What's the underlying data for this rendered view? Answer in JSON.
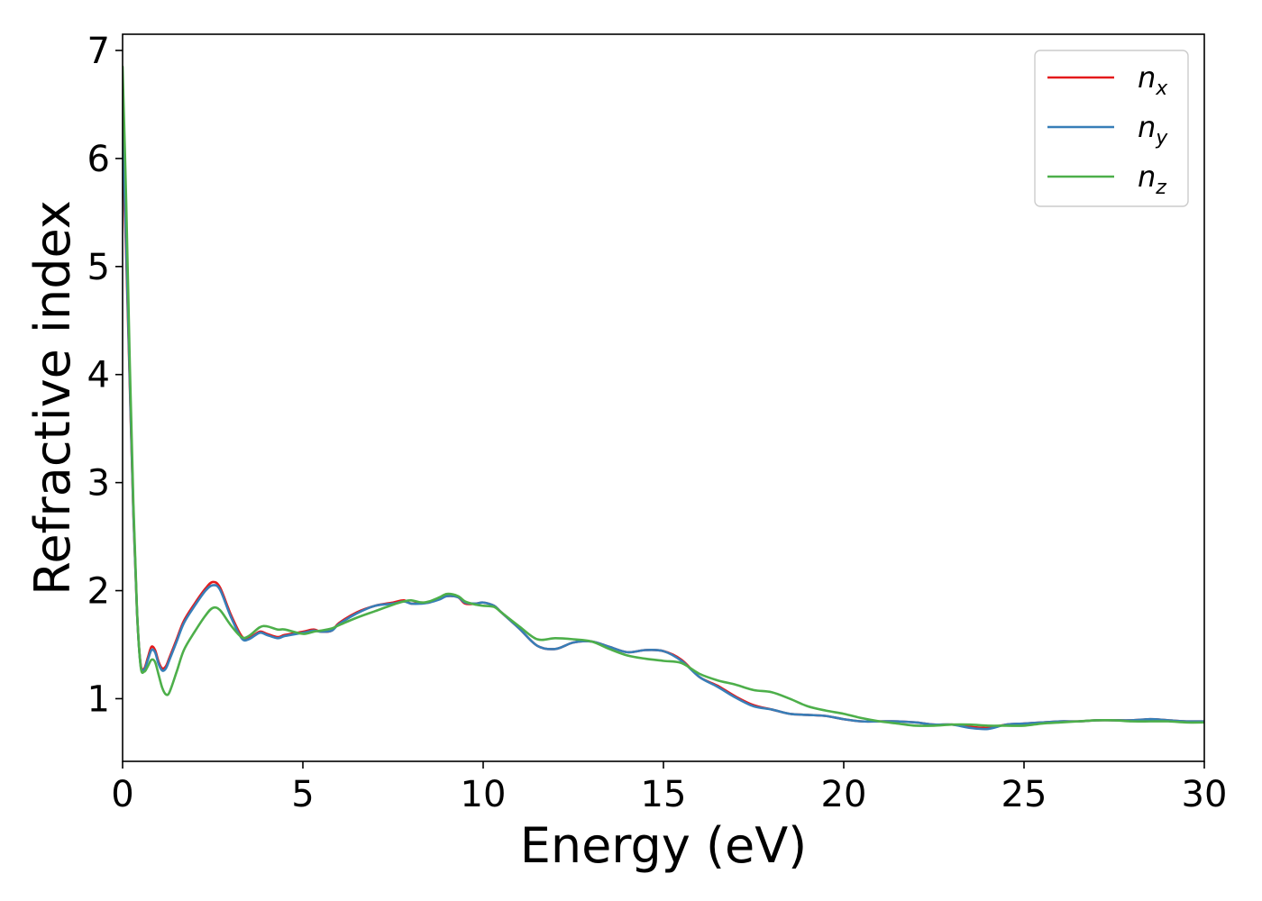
{
  "chart_data": {
    "type": "line",
    "xlabel": "Energy (eV)",
    "ylabel": "Refractive index",
    "xlim": [
      0,
      30
    ],
    "ylim": [
      0.42,
      7.15
    ],
    "x_ticks": [
      0,
      5,
      10,
      15,
      20,
      25,
      30
    ],
    "y_ticks": [
      1,
      2,
      3,
      4,
      5,
      6,
      7
    ],
    "grid": false,
    "legend_position": "top-right",
    "series": [
      {
        "name": "n",
        "subscript": "x",
        "color": "#e41a1c",
        "x": [
          0,
          0.1,
          0.2,
          0.3,
          0.4,
          0.5,
          0.6,
          0.7,
          0.8,
          0.9,
          1.0,
          1.1,
          1.2,
          1.3,
          1.5,
          1.7,
          2.0,
          2.3,
          2.5,
          2.7,
          3.0,
          3.3,
          3.5,
          3.8,
          4.0,
          4.3,
          4.5,
          5.0,
          5.3,
          5.5,
          5.8,
          6.0,
          6.5,
          7.0,
          7.5,
          7.8,
          8.0,
          8.3,
          8.5,
          8.8,
          9.0,
          9.3,
          9.5,
          9.8,
          10.0,
          10.3,
          10.5,
          11.0,
          11.5,
          12.0,
          12.5,
          13.0,
          13.5,
          14.0,
          14.5,
          15.0,
          15.5,
          16.0,
          16.5,
          17.0,
          17.5,
          18.0,
          18.5,
          19.0,
          19.5,
          20.0,
          20.5,
          21.0,
          21.5,
          22.0,
          22.5,
          23.0,
          23.5,
          24.0,
          24.5,
          25.0,
          25.5,
          26.0,
          26.5,
          27.0,
          27.5,
          28.0,
          28.5,
          29.0,
          29.5,
          30.0
        ],
        "y": [
          6.1,
          5.1,
          3.9,
          2.7,
          1.8,
          1.32,
          1.28,
          1.38,
          1.48,
          1.45,
          1.34,
          1.28,
          1.3,
          1.38,
          1.55,
          1.72,
          1.88,
          2.02,
          2.08,
          2.03,
          1.78,
          1.58,
          1.56,
          1.62,
          1.6,
          1.57,
          1.59,
          1.62,
          1.64,
          1.62,
          1.63,
          1.7,
          1.8,
          1.86,
          1.89,
          1.91,
          1.88,
          1.89,
          1.89,
          1.93,
          1.95,
          1.94,
          1.88,
          1.88,
          1.89,
          1.86,
          1.8,
          1.65,
          1.49,
          1.46,
          1.52,
          1.53,
          1.48,
          1.43,
          1.45,
          1.44,
          1.36,
          1.2,
          1.12,
          1.02,
          0.94,
          0.9,
          0.86,
          0.85,
          0.84,
          0.81,
          0.79,
          0.79,
          0.79,
          0.78,
          0.76,
          0.76,
          0.74,
          0.73,
          0.76,
          0.77,
          0.78,
          0.79,
          0.79,
          0.8,
          0.8,
          0.8,
          0.81,
          0.8,
          0.79,
          0.79
        ]
      },
      {
        "name": "n",
        "subscript": "y",
        "color": "#377eb8",
        "x": [
          0,
          0.1,
          0.2,
          0.3,
          0.4,
          0.5,
          0.6,
          0.7,
          0.8,
          0.9,
          1.0,
          1.1,
          1.2,
          1.3,
          1.5,
          1.7,
          2.0,
          2.3,
          2.5,
          2.7,
          3.0,
          3.3,
          3.5,
          3.8,
          4.0,
          4.3,
          4.5,
          5.0,
          5.3,
          5.5,
          5.8,
          6.0,
          6.5,
          7.0,
          7.5,
          7.8,
          8.0,
          8.3,
          8.5,
          8.8,
          9.0,
          9.3,
          9.5,
          9.8,
          10.0,
          10.3,
          10.5,
          11.0,
          11.5,
          12.0,
          12.5,
          13.0,
          13.5,
          14.0,
          14.5,
          15.0,
          15.5,
          16.0,
          16.5,
          17.0,
          17.5,
          18.0,
          18.5,
          19.0,
          19.5,
          20.0,
          20.5,
          21.0,
          21.5,
          22.0,
          22.5,
          23.0,
          23.5,
          24.0,
          24.5,
          25.0,
          25.5,
          26.0,
          26.5,
          27.0,
          27.5,
          28.0,
          28.5,
          29.0,
          29.5,
          30.0
        ],
        "y": [
          6.3,
          5.2,
          3.95,
          2.72,
          1.8,
          1.31,
          1.27,
          1.36,
          1.45,
          1.43,
          1.32,
          1.26,
          1.28,
          1.36,
          1.53,
          1.7,
          1.86,
          2.0,
          2.05,
          2.01,
          1.76,
          1.56,
          1.55,
          1.61,
          1.59,
          1.56,
          1.58,
          1.61,
          1.63,
          1.62,
          1.63,
          1.69,
          1.79,
          1.86,
          1.88,
          1.9,
          1.88,
          1.88,
          1.89,
          1.92,
          1.95,
          1.94,
          1.89,
          1.88,
          1.89,
          1.86,
          1.8,
          1.65,
          1.49,
          1.46,
          1.52,
          1.53,
          1.48,
          1.43,
          1.45,
          1.44,
          1.35,
          1.2,
          1.11,
          1.01,
          0.93,
          0.9,
          0.86,
          0.85,
          0.84,
          0.81,
          0.79,
          0.79,
          0.79,
          0.78,
          0.76,
          0.76,
          0.73,
          0.72,
          0.76,
          0.77,
          0.78,
          0.79,
          0.79,
          0.8,
          0.8,
          0.8,
          0.81,
          0.8,
          0.79,
          0.79
        ]
      },
      {
        "name": "n",
        "subscript": "z",
        "color": "#4daf4a",
        "x": [
          0,
          0.1,
          0.2,
          0.3,
          0.4,
          0.5,
          0.6,
          0.7,
          0.8,
          0.9,
          1.0,
          1.1,
          1.2,
          1.3,
          1.5,
          1.7,
          2.0,
          2.3,
          2.5,
          2.7,
          3.0,
          3.3,
          3.5,
          3.8,
          4.0,
          4.3,
          4.5,
          5.0,
          5.3,
          5.5,
          5.8,
          6.0,
          6.5,
          7.0,
          7.5,
          7.8,
          8.0,
          8.3,
          8.5,
          8.8,
          9.0,
          9.3,
          9.5,
          9.8,
          10.0,
          10.3,
          10.5,
          11.0,
          11.5,
          12.0,
          12.5,
          13.0,
          13.5,
          14.0,
          14.5,
          15.0,
          15.5,
          16.0,
          16.5,
          17.0,
          17.5,
          18.0,
          18.5,
          19.0,
          19.5,
          20.0,
          20.5,
          21.0,
          21.5,
          22.0,
          22.5,
          23.0,
          23.5,
          24.0,
          24.5,
          25.0,
          25.5,
          26.0,
          26.5,
          27.0,
          27.5,
          28.0,
          28.5,
          29.0,
          29.5,
          30.0
        ],
        "y": [
          6.85,
          5.6,
          4.1,
          2.8,
          1.82,
          1.3,
          1.25,
          1.3,
          1.36,
          1.34,
          1.22,
          1.1,
          1.04,
          1.06,
          1.25,
          1.45,
          1.62,
          1.77,
          1.84,
          1.82,
          1.68,
          1.57,
          1.58,
          1.66,
          1.67,
          1.64,
          1.64,
          1.6,
          1.62,
          1.63,
          1.65,
          1.68,
          1.75,
          1.81,
          1.87,
          1.9,
          1.91,
          1.89,
          1.9,
          1.94,
          1.97,
          1.95,
          1.9,
          1.87,
          1.86,
          1.85,
          1.8,
          1.67,
          1.55,
          1.56,
          1.55,
          1.53,
          1.46,
          1.4,
          1.37,
          1.35,
          1.33,
          1.23,
          1.17,
          1.13,
          1.08,
          1.06,
          1.0,
          0.93,
          0.89,
          0.86,
          0.82,
          0.79,
          0.77,
          0.75,
          0.75,
          0.76,
          0.76,
          0.75,
          0.75,
          0.75,
          0.77,
          0.78,
          0.79,
          0.8,
          0.8,
          0.79,
          0.79,
          0.79,
          0.78,
          0.78
        ]
      }
    ]
  }
}
